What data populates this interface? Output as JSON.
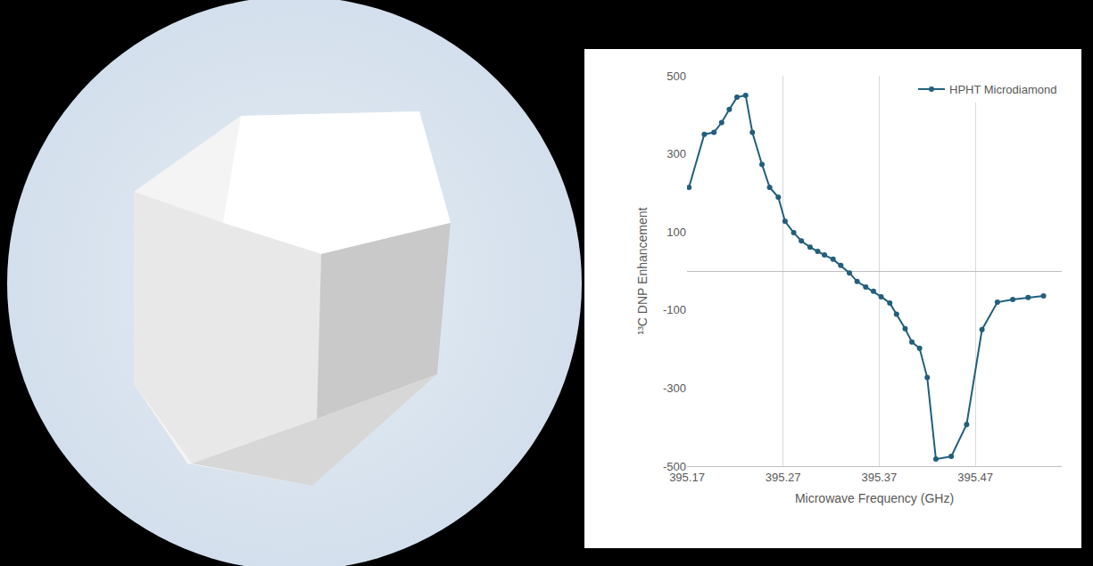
{
  "chart_data": {
    "type": "line",
    "x_label": "Microwave Frequency (GHz)",
    "y_label": "¹³C DNP Enhancement",
    "x": [
      395.172,
      395.188,
      395.198,
      395.206,
      395.214,
      395.222,
      395.231,
      395.238,
      395.248,
      395.256,
      395.265,
      395.272,
      395.281,
      395.289,
      395.298,
      395.306,
      395.313,
      395.322,
      395.33,
      395.339,
      395.347,
      395.356,
      395.364,
      395.372,
      395.381,
      395.388,
      395.397,
      395.404,
      395.412,
      395.42,
      395.429,
      395.445,
      395.461,
      395.477,
      395.493,
      395.509,
      395.525,
      395.541
    ],
    "series": [
      {
        "name": "HPHT Microdiamond",
        "color": "#215f7d",
        "marker": "circle",
        "line_style": "solid",
        "values": [
          214,
          350,
          355,
          380,
          414,
          445,
          450,
          355,
          273,
          214,
          189,
          127,
          98,
          77,
          61,
          50,
          41,
          30,
          14,
          -5,
          -27,
          -41,
          -52,
          -66,
          -82,
          -111,
          -148,
          -182,
          -198,
          -273,
          -482,
          -475,
          -393,
          -150,
          -80,
          -73,
          -68,
          -64
        ]
      }
    ],
    "xlim": [
      395.17,
      395.56
    ],
    "xticks": [
      395.17,
      395.27,
      395.37,
      395.47
    ],
    "ylim": [
      -500,
      500
    ],
    "yticks": [
      -500,
      -300,
      -100,
      100,
      300,
      500
    ],
    "grid": "x",
    "legend": "top right"
  }
}
